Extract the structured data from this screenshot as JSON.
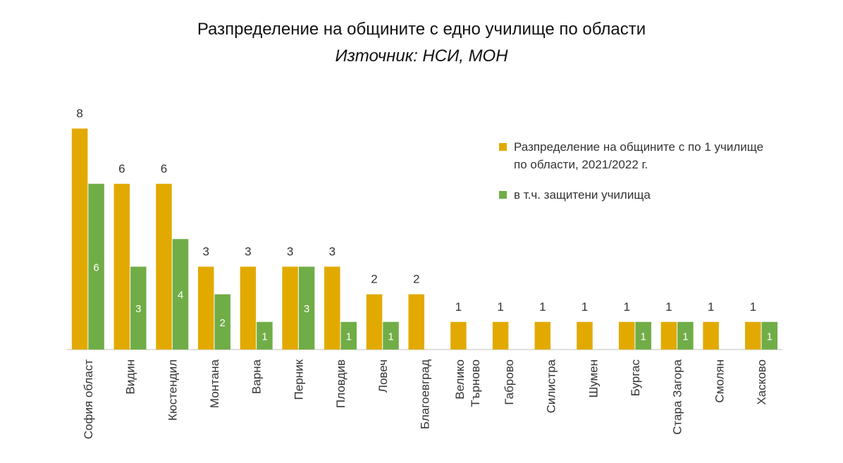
{
  "chart_data": {
    "type": "bar",
    "title": "Разпределение на общините с едно училище по области",
    "subtitle": "Източник: НСИ, МОН",
    "categories": [
      "София област",
      "Видин",
      "Кюстендил",
      "Монтана",
      "Варна",
      "Перник",
      "Пловдив",
      "Ловеч",
      "Благоевград",
      "Велико Търново",
      "Габрово",
      "Силистра",
      "Шумен",
      "Бургас",
      "Стара Загора",
      "Смолян",
      "Хасково"
    ],
    "series": [
      {
        "name": "Разпределение на общините с по 1 училище по области, 2021/2022 г.",
        "color": "#E2AA00",
        "values": [
          8,
          6,
          6,
          3,
          3,
          3,
          3,
          2,
          2,
          1,
          1,
          1,
          1,
          1,
          1,
          1,
          1
        ]
      },
      {
        "name": "в т.ч.  защитени училища",
        "color": "#70AD47",
        "values": [
          6,
          3,
          4,
          2,
          1,
          3,
          1,
          1,
          null,
          null,
          null,
          null,
          null,
          1,
          1,
          null,
          1
        ]
      }
    ],
    "ylim": [
      0,
      8
    ],
    "grid": false,
    "legend_position": "right"
  }
}
